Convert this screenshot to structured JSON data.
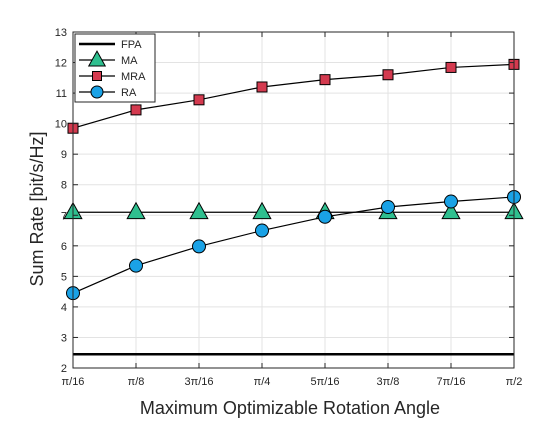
{
  "chart_data": {
    "type": "line",
    "title": "",
    "xlabel": "Maximum Optimizable Rotation Angle",
    "ylabel": "Sum Rate [bit/s/Hz]",
    "categories": [
      "π/16",
      "π/8",
      "3π/16",
      "π/4",
      "5π/16",
      "3π/8",
      "7π/16",
      "π/2"
    ],
    "x": [
      1,
      2,
      3,
      4,
      5,
      6,
      7,
      8
    ],
    "ylim": [
      2,
      13
    ],
    "yticks": [
      2,
      3,
      4,
      5,
      6,
      7,
      8,
      9,
      10,
      11,
      12,
      13
    ],
    "grid": true,
    "legend_position": "top-left",
    "series": [
      {
        "name": "FPA",
        "values": [
          2.45,
          2.45,
          2.45,
          2.45,
          2.45,
          2.45,
          2.45,
          2.45
        ],
        "marker": "none",
        "line_color": "#000000",
        "fill_color": ""
      },
      {
        "name": "MA",
        "values": [
          7.1,
          7.1,
          7.1,
          7.1,
          7.1,
          7.1,
          7.1,
          7.1
        ],
        "marker": "triangle",
        "line_color": "#000000",
        "fill_color": "#2fbf8f"
      },
      {
        "name": "MRA",
        "values": [
          9.85,
          10.45,
          10.78,
          11.2,
          11.44,
          11.6,
          11.84,
          11.94
        ],
        "marker": "square",
        "line_color": "#000000",
        "fill_color": "#d43a4f"
      },
      {
        "name": "RA",
        "values": [
          4.45,
          5.35,
          5.98,
          6.5,
          6.95,
          7.27,
          7.45,
          7.6
        ],
        "marker": "circle",
        "line_color": "#000000",
        "fill_color": "#1aa2e6"
      }
    ]
  }
}
